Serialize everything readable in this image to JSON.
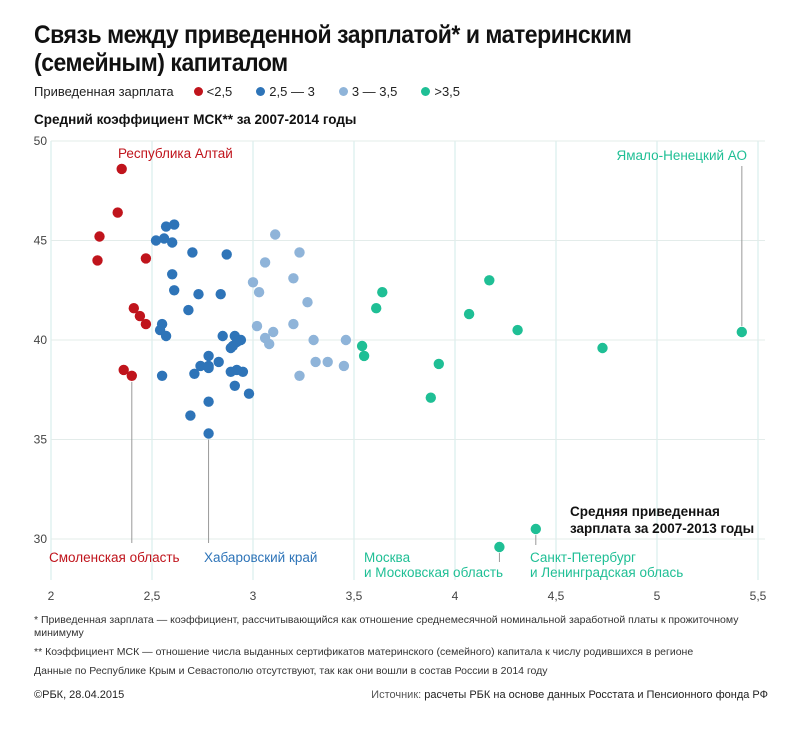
{
  "title": "Связь между приведенной зарплатой* и материнским (семейным) капиталом",
  "legend": {
    "title": "Приведенная зарплата",
    "items": [
      {
        "label": "<2,5",
        "color": "#c0141c"
      },
      {
        "label": "2,5 — 3",
        "color": "#2e74b8"
      },
      {
        "label": "3 — 3,5",
        "color": "#8fb4d9"
      },
      {
        "label": ">3,5",
        "color": "#1fbf95"
      }
    ]
  },
  "subtitle": "Средний коэффициент МСК** за 2007-2014 годы",
  "chart_data": {
    "type": "scatter",
    "title": "Связь между приведенной зарплатой* и материнским (семейным) капиталом",
    "xlabel": "Средняя приведенная зарплата за 2007-2013 годы",
    "ylabel": "Средний коэффициент МСК** за 2007-2014 годы",
    "xlim": [
      2,
      5.5
    ],
    "ylim": [
      28,
      50
    ],
    "x_ticks": [
      2,
      2.5,
      3,
      3.5,
      4,
      4.5,
      5,
      5.5
    ],
    "x_tick_labels": [
      "2",
      "2,5",
      "3",
      "3,5",
      "4",
      "4,5",
      "5",
      "5,5"
    ],
    "y_ticks": [
      30,
      35,
      40,
      45,
      50
    ],
    "y_tick_labels": [
      "30",
      "35",
      "40",
      "45",
      "50"
    ],
    "grid": true,
    "legend_position": "top",
    "series": [
      {
        "name": "<2,5",
        "color": "#c0141c",
        "points": [
          [
            2.35,
            48.6
          ],
          [
            2.33,
            46.4
          ],
          [
            2.24,
            45.2
          ],
          [
            2.23,
            44.0
          ],
          [
            2.47,
            44.1
          ],
          [
            2.41,
            41.6
          ],
          [
            2.44,
            41.2
          ],
          [
            2.47,
            40.8
          ],
          [
            2.36,
            38.5
          ],
          [
            2.4,
            38.2
          ]
        ]
      },
      {
        "name": "2,5 — 3",
        "color": "#2e74b8",
        "points": [
          [
            2.57,
            45.7
          ],
          [
            2.61,
            45.8
          ],
          [
            2.52,
            45.0
          ],
          [
            2.56,
            45.1
          ],
          [
            2.6,
            44.9
          ],
          [
            2.7,
            44.4
          ],
          [
            2.87,
            44.3
          ],
          [
            2.6,
            43.3
          ],
          [
            2.61,
            42.5
          ],
          [
            2.73,
            42.3
          ],
          [
            2.84,
            42.3
          ],
          [
            2.55,
            40.8
          ],
          [
            2.54,
            40.5
          ],
          [
            2.57,
            40.2
          ],
          [
            2.68,
            41.5
          ],
          [
            2.85,
            40.2
          ],
          [
            2.91,
            40.2
          ],
          [
            2.94,
            40.0
          ],
          [
            2.92,
            39.9
          ],
          [
            2.89,
            39.6
          ],
          [
            2.9,
            39.7
          ],
          [
            2.78,
            39.2
          ],
          [
            2.83,
            38.9
          ],
          [
            2.78,
            38.6
          ],
          [
            2.74,
            38.7
          ],
          [
            2.71,
            38.3
          ],
          [
            2.78,
            38.7
          ],
          [
            2.89,
            38.4
          ],
          [
            2.92,
            38.5
          ],
          [
            2.95,
            38.4
          ],
          [
            2.91,
            37.7
          ],
          [
            2.98,
            37.3
          ],
          [
            2.55,
            38.2
          ],
          [
            2.78,
            36.9
          ],
          [
            2.69,
            36.2
          ],
          [
            2.78,
            35.3
          ]
        ]
      },
      {
        "name": "3 — 3,5",
        "color": "#8fb4d9",
        "points": [
          [
            3.11,
            45.3
          ],
          [
            3.23,
            44.4
          ],
          [
            3.06,
            43.9
          ],
          [
            3.0,
            42.9
          ],
          [
            3.03,
            42.4
          ],
          [
            3.2,
            43.1
          ],
          [
            3.27,
            41.9
          ],
          [
            3.02,
            40.7
          ],
          [
            3.2,
            40.8
          ],
          [
            3.1,
            40.4
          ],
          [
            3.06,
            40.1
          ],
          [
            3.08,
            39.8
          ],
          [
            3.3,
            40.0
          ],
          [
            3.46,
            40.0
          ],
          [
            3.31,
            38.9
          ],
          [
            3.37,
            38.9
          ],
          [
            3.45,
            38.7
          ],
          [
            3.23,
            38.2
          ]
        ]
      },
      {
        "name": ">3,5",
        "color": "#1fbf95",
        "points": [
          [
            3.64,
            42.4
          ],
          [
            3.61,
            41.6
          ],
          [
            3.54,
            39.7
          ],
          [
            3.55,
            39.2
          ],
          [
            3.92,
            38.8
          ],
          [
            3.88,
            37.1
          ],
          [
            4.07,
            41.3
          ],
          [
            4.17,
            43.0
          ],
          [
            4.31,
            40.5
          ],
          [
            4.73,
            39.6
          ],
          [
            5.42,
            40.4
          ],
          [
            4.4,
            30.5
          ],
          [
            4.22,
            29.6
          ]
        ]
      }
    ],
    "annotations": [
      {
        "text": "Республика Алтай",
        "color": "#c0141c",
        "x": 2.35,
        "y": 48.6
      },
      {
        "text": "Смоленская область",
        "color": "#c0141c",
        "x": 2.4,
        "y": 38.2
      },
      {
        "text": "Хабаровский край",
        "color": "#2e74b8",
        "x": 2.78,
        "y": 35.3
      },
      {
        "text": "Москва",
        "text2": "и Московская область",
        "color": "#1fbf95",
        "x": 4.22,
        "y": 29.6
      },
      {
        "text": "Санкт-Петербург",
        "text2": "и Ленинградская облась",
        "color": "#1fbf95",
        "x": 4.4,
        "y": 30.5
      },
      {
        "text": "Ямало-Ненецкий АО",
        "color": "#1fbf95",
        "x": 5.42,
        "y": 40.4
      }
    ],
    "x_axis_title_line1": "Средняя приведенная",
    "x_axis_title_line2": "зарплата за 2007-2013 годы"
  },
  "notes": [
    "* Приведенная зарплата — коэффициент, рассчитывающийся как отношение среднемесячной номинальной заработной платы к прожиточному минимуму",
    "** Коэффициент МСК — отношение числа выданных сертификатов материнского (семейного) капитала к числу родившихся в регионе",
    "Данные по Республике Крым и Севастополю отсутствуют, так как они вошли в состав России в 2014 году"
  ],
  "footer": {
    "copyright": "©РБК, 28.04.2015",
    "source_label": "Источник:",
    "source_text": "расчеты РБК на основе данных Росстата и Пенсионного фонда РФ"
  }
}
